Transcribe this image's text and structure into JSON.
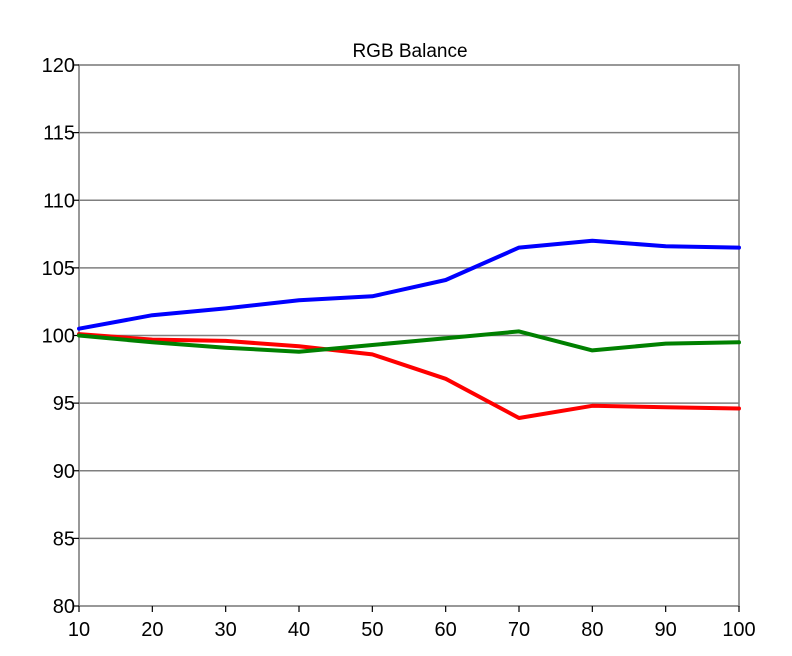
{
  "chart_data": {
    "type": "line",
    "title": "RGB Balance",
    "xlabel": "",
    "ylabel": "",
    "x": [
      10,
      20,
      30,
      40,
      50,
      60,
      70,
      80,
      90,
      100
    ],
    "xlim": [
      10,
      100
    ],
    "ylim": [
      80,
      120
    ],
    "x_ticks": [
      10,
      20,
      30,
      40,
      50,
      60,
      70,
      80,
      90,
      100
    ],
    "y_ticks": [
      80,
      85,
      90,
      95,
      100,
      105,
      110,
      115,
      120
    ],
    "grid": "horizontal",
    "legend": "none",
    "series": [
      {
        "color": "#0000ff",
        "values": [
          100.5,
          101.5,
          102.0,
          102.6,
          102.9,
          104.1,
          106.5,
          107.0,
          106.6,
          106.5
        ]
      },
      {
        "color": "#ff0000",
        "values": [
          100.1,
          99.7,
          99.6,
          99.2,
          98.6,
          96.8,
          93.9,
          94.8,
          94.7,
          94.6
        ]
      },
      {
        "color": "#008000",
        "values": [
          100.0,
          99.5,
          99.1,
          98.8,
          99.3,
          99.8,
          100.3,
          98.9,
          99.4,
          99.5
        ]
      }
    ]
  }
}
